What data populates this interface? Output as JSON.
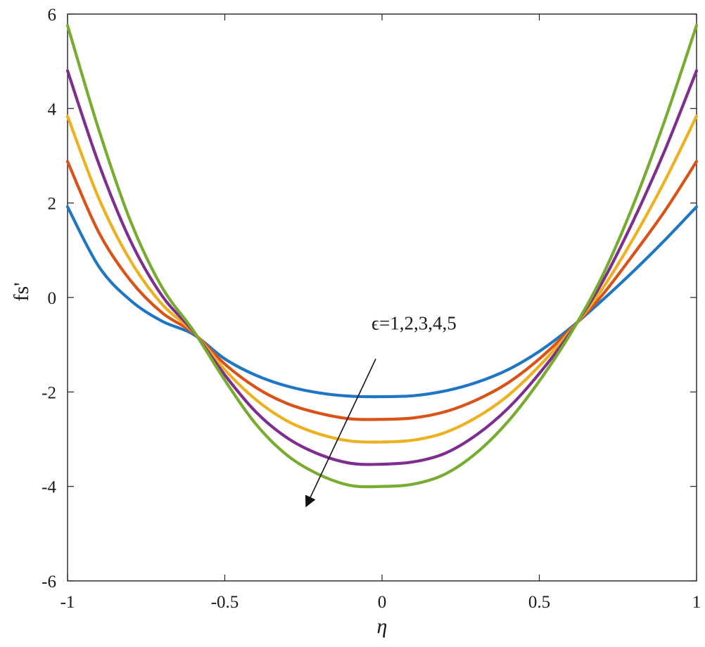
{
  "chart_data": {
    "type": "line",
    "xlabel": "η",
    "ylabel": "fs'",
    "xlim": [
      -1,
      1
    ],
    "ylim": [
      -6,
      6
    ],
    "xticks": [
      -1,
      -0.5,
      0,
      0.5,
      1
    ],
    "xtick_labels": [
      "-1",
      "-0.5",
      "0",
      "0.5",
      "1"
    ],
    "yticks": [
      -6,
      -4,
      -2,
      0,
      2,
      4,
      6
    ],
    "ytick_labels": [
      "-6",
      "-4",
      "-2",
      "0",
      "2",
      "4",
      "6"
    ],
    "grid": false,
    "legend": "none",
    "x": [
      -1,
      -0.9,
      -0.8,
      -0.7,
      -0.6,
      -0.5,
      -0.4,
      -0.3,
      -0.2,
      -0.1,
      0,
      0.1,
      0.2,
      0.3,
      0.4,
      0.5,
      0.6,
      0.7,
      0.8,
      0.9,
      1
    ],
    "series": [
      {
        "color": "#1f77c4",
        "values": [
          1.92,
          0.65,
          -0.06,
          -0.5,
          -0.78,
          -1.3,
          -1.65,
          -1.88,
          -2.02,
          -2.09,
          -2.1,
          -2.08,
          -1.98,
          -1.8,
          -1.53,
          -1.14,
          -0.64,
          -0.06,
          0.56,
          1.22,
          1.92
        ]
      },
      {
        "color": "#d95319",
        "values": [
          2.88,
          1.37,
          0.36,
          -0.32,
          -0.75,
          -1.41,
          -1.91,
          -2.25,
          -2.45,
          -2.57,
          -2.58,
          -2.55,
          -2.42,
          -2.17,
          -1.81,
          -1.3,
          -0.67,
          0.05,
          0.92,
          1.84,
          2.88
        ]
      },
      {
        "color": "#edb120",
        "values": [
          3.84,
          2.09,
          0.78,
          -0.14,
          -0.73,
          -1.53,
          -2.17,
          -2.62,
          -2.89,
          -3.04,
          -3.06,
          -3.02,
          -2.86,
          -2.54,
          -2.08,
          -1.45,
          -0.7,
          0.18,
          1.26,
          2.48,
          3.84
        ]
      },
      {
        "color": "#7e2f8e",
        "values": [
          4.8,
          2.82,
          1.2,
          0.04,
          -0.72,
          -1.64,
          -2.43,
          -2.98,
          -3.32,
          -3.51,
          -3.53,
          -3.48,
          -3.3,
          -2.91,
          -2.35,
          -1.61,
          -0.73,
          0.32,
          1.64,
          3.13,
          4.8
        ]
      },
      {
        "color": "#77ac30",
        "values": [
          5.76,
          3.54,
          1.62,
          0.22,
          -0.7,
          -1.75,
          -2.69,
          -3.35,
          -3.75,
          -3.98,
          -4.0,
          -3.95,
          -3.74,
          -3.29,
          -2.63,
          -1.77,
          -0.76,
          0.45,
          1.98,
          3.77,
          5.76
        ]
      }
    ],
    "annotation": {
      "text": "ϵ=1,2,3,4,5",
      "arrow_from": [
        -0.02,
        -1.3
      ],
      "arrow_to": [
        -0.24,
        -4.4
      ]
    }
  }
}
